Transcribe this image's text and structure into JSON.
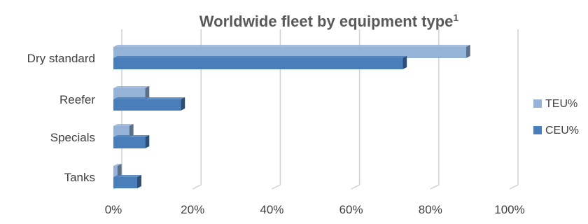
{
  "chart_data": {
    "type": "bar",
    "orientation": "horizontal",
    "style": "3d-clustered",
    "title": "Worldwide fleet by equipment type",
    "title_superscript": "1",
    "categories": [
      "Dry standard",
      "Reefer",
      "Specials",
      "Tanks"
    ],
    "series": [
      {
        "name": "TEU%",
        "values": [
          89,
          8,
          4,
          1
        ],
        "color": "#95B3D7"
      },
      {
        "name": "CEU%",
        "values": [
          73,
          17,
          8,
          6
        ],
        "color": "#4A7EBB"
      }
    ],
    "xlim": [
      0,
      100
    ],
    "x_tick_labels": [
      "0%",
      "20%",
      "40%",
      "60%",
      "80%",
      "100%"
    ],
    "grid": true,
    "legend_position": "right"
  }
}
